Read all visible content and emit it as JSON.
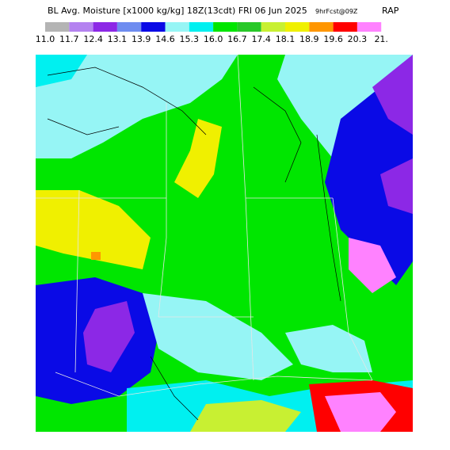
{
  "header": {
    "title": "BL Avg. Moisture [x1000 kg/kg] 18Z(13cdt) FRI 06 Jun 2025",
    "forecast": "9hrFcst@09Z",
    "model": "RAP"
  },
  "legend": {
    "colors": [
      "#b4b4b4",
      "#b482f0",
      "#8c28e6",
      "#6e8cf0",
      "#0a0ae6",
      "#96f5f5",
      "#00f0f0",
      "#00e600",
      "#28c828",
      "#c8f032",
      "#f0f000",
      "#ff9600",
      "#ff0000",
      "#ff82ff"
    ],
    "labels": [
      "11.0",
      "11.7",
      "12.4",
      "13.1",
      "13.9",
      "14.6",
      "15.3",
      "16.0",
      "16.7",
      "17.4",
      "18.1",
      "18.9",
      "19.6",
      "20.3",
      "21."
    ]
  }
}
